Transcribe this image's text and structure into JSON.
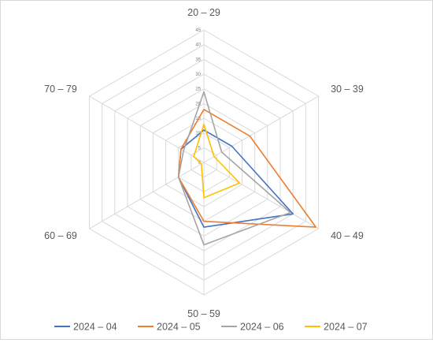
{
  "chart_data": {
    "type": "radar",
    "categories": [
      "20 – 29",
      "30 – 39",
      "40 – 49",
      "50 – 59",
      "60 – 69",
      "70 – 79"
    ],
    "rlim": [
      0,
      45
    ],
    "ticks": [
      "0",
      "5",
      "10",
      "15",
      "20",
      "25",
      "30",
      "35",
      "40",
      "45"
    ],
    "grid": true,
    "legend_position": "bottom",
    "series": [
      {
        "name": "2024 – 04",
        "color": "#4472C4",
        "values": [
          11,
          11,
          35,
          22,
          10,
          9
        ]
      },
      {
        "name": "2024 – 05",
        "color": "#ED7D31",
        "values": [
          18,
          18,
          44,
          20,
          10,
          9
        ]
      },
      {
        "name": "2024 – 06",
        "color": "#A5A5A5",
        "values": [
          24,
          7,
          34,
          28,
          10,
          8
        ]
      },
      {
        "name": "2024 – 07",
        "color": "#FFC000",
        "values": [
          13,
          4,
          14,
          12,
          1,
          4
        ]
      }
    ]
  }
}
